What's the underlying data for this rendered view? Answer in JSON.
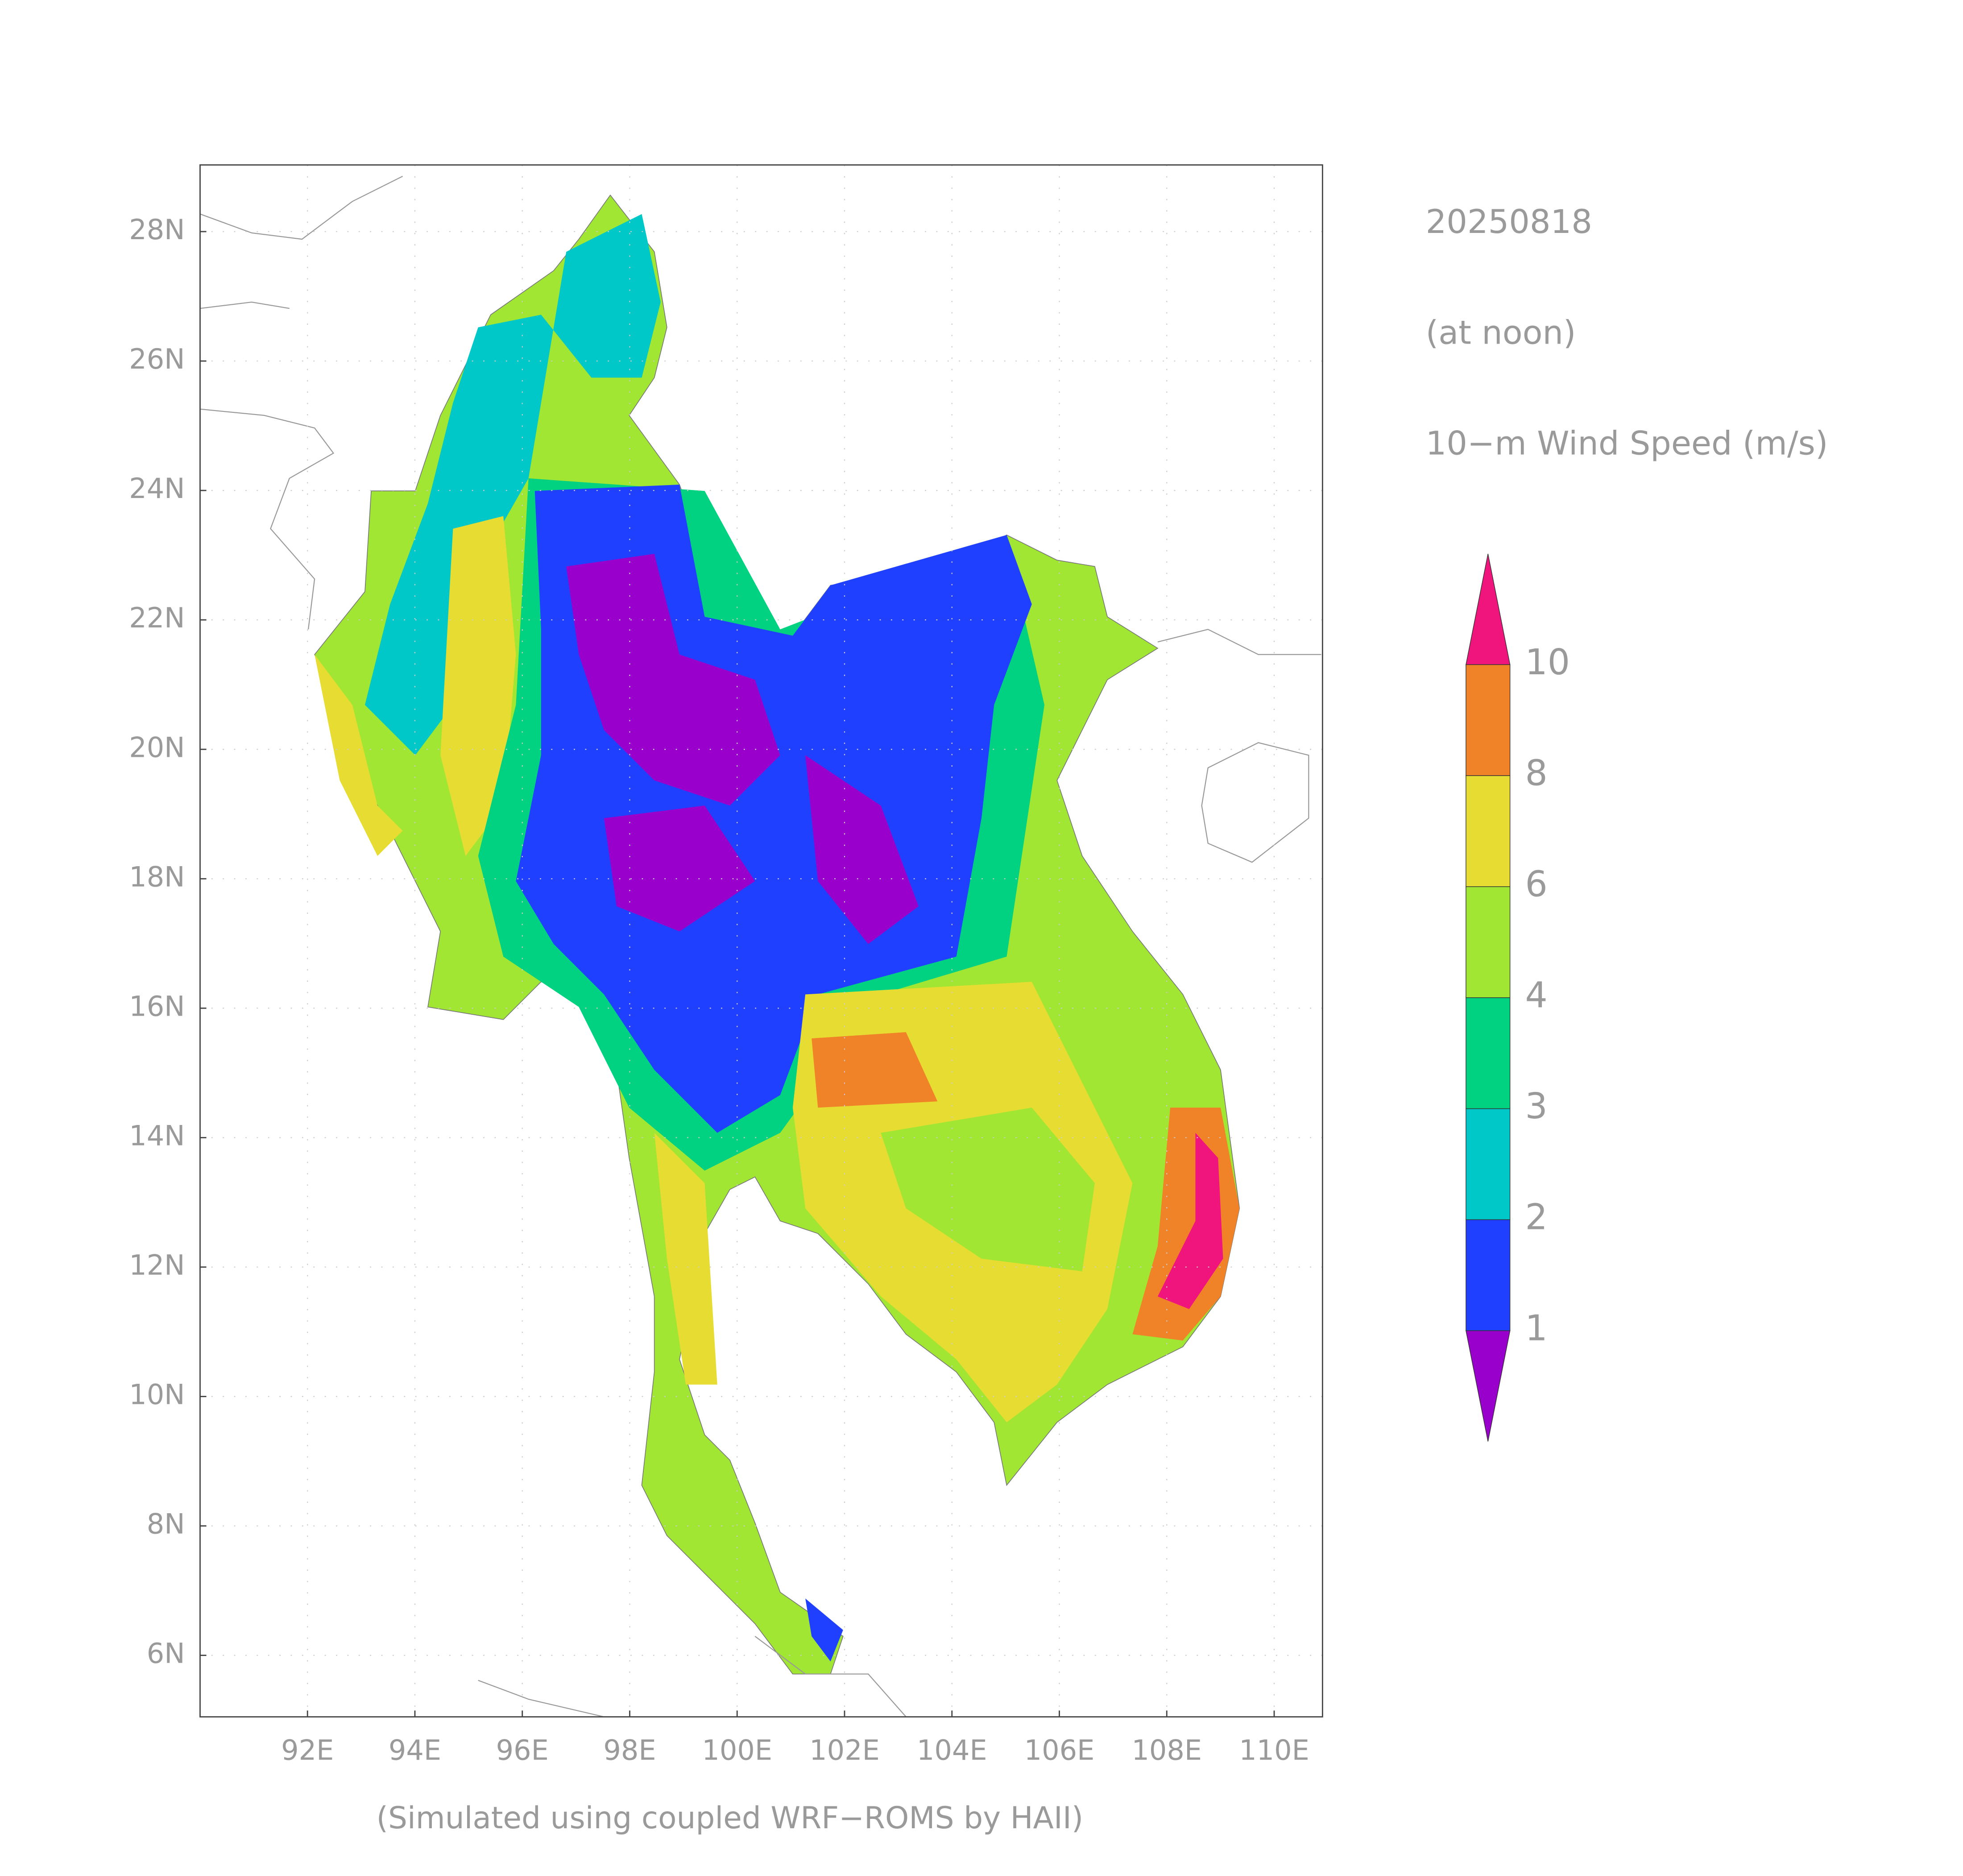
{
  "header": {
    "date": "20250818",
    "time": "(at noon)",
    "variable": "10−m Wind Speed (m/s)"
  },
  "map": {
    "lonlim": [
      90,
      110.9
    ],
    "latlim": [
      5.05,
      29.03
    ],
    "lonticks": [
      {
        "value": 92,
        "label": "92E"
      },
      {
        "value": 94,
        "label": "94E"
      },
      {
        "value": 96,
        "label": "96E"
      },
      {
        "value": 98,
        "label": "98E"
      },
      {
        "value": 100,
        "label": "100E"
      },
      {
        "value": 102,
        "label": "102E"
      },
      {
        "value": 104,
        "label": "104E"
      },
      {
        "value": 106,
        "label": "106E"
      },
      {
        "value": 108,
        "label": "108E"
      },
      {
        "value": 110,
        "label": "110E"
      }
    ],
    "latticks": [
      {
        "value": 6,
        "label": "6N"
      },
      {
        "value": 8,
        "label": "8N"
      },
      {
        "value": 10,
        "label": "10N"
      },
      {
        "value": 12,
        "label": "12N"
      },
      {
        "value": 14,
        "label": "14N"
      },
      {
        "value": 16,
        "label": "16N"
      },
      {
        "value": 18,
        "label": "18N"
      },
      {
        "value": 20,
        "label": "20N"
      },
      {
        "value": 22,
        "label": "22N"
      },
      {
        "value": 24,
        "label": "24N"
      },
      {
        "value": 26,
        "label": "26N"
      },
      {
        "value": 28,
        "label": "28N"
      }
    ],
    "grid": true
  },
  "colorbar": {
    "levels": [
      1,
      2,
      3,
      4,
      6,
      8,
      10
    ],
    "colors": [
      "#9a00cc",
      "#2040ff",
      "#00c8c8",
      "#00d282",
      "#a0e632",
      "#e6dc32",
      "#f08228",
      "#f0147d"
    ]
  },
  "footer": "(Simulated using coupled WRF−ROMS by HAII)"
}
